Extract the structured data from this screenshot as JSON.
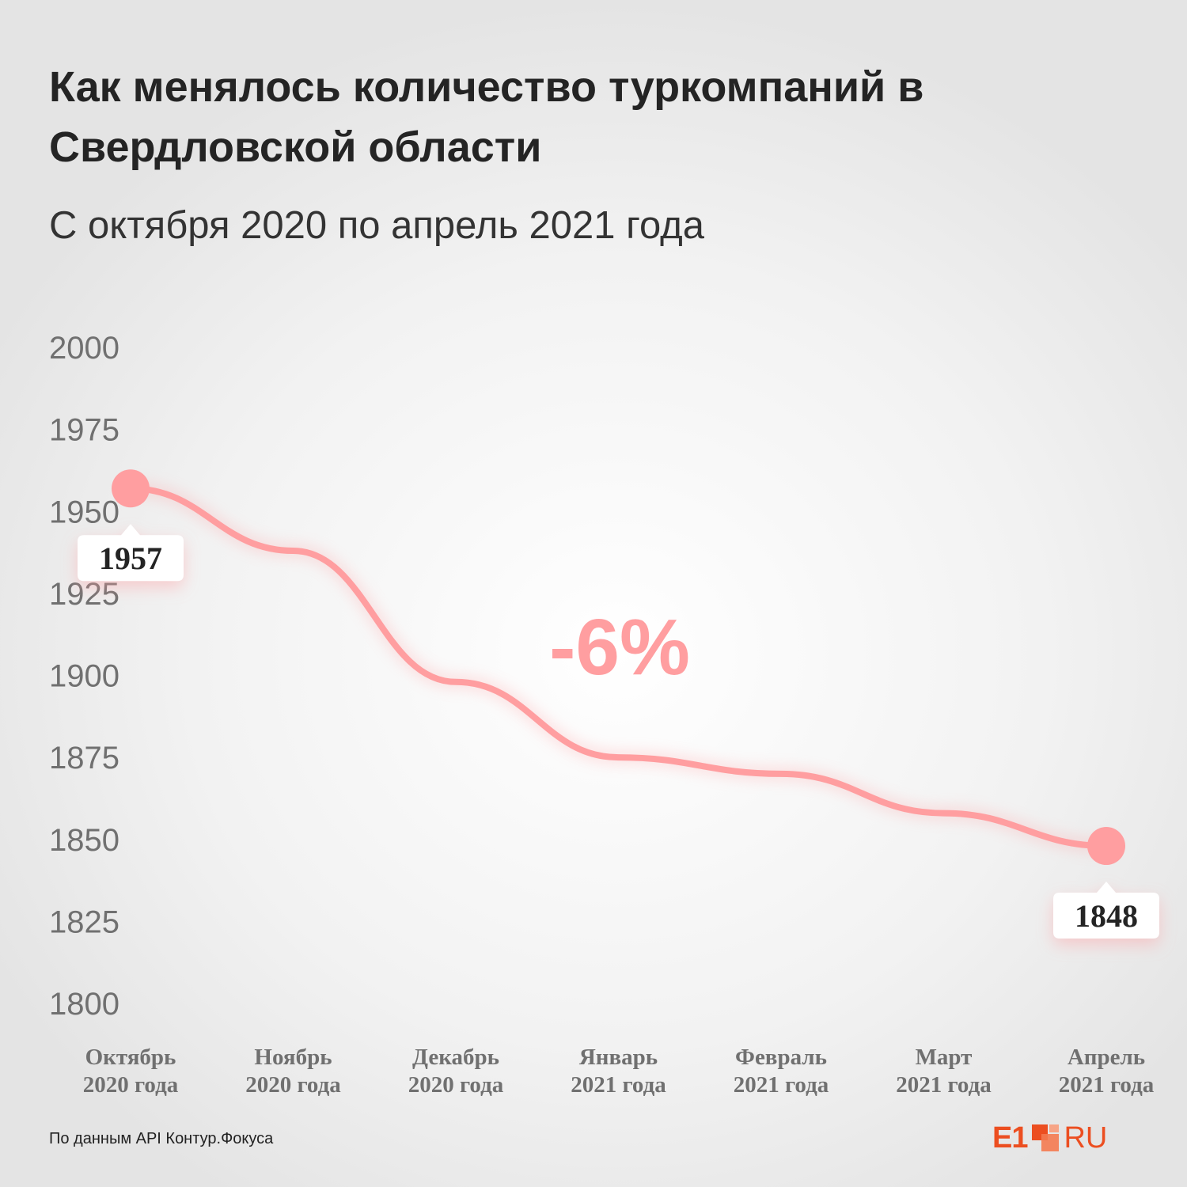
{
  "header": {
    "title": "Как менялось количество туркомпаний в Свердловской области",
    "subtitle": "С октября 2020 по апрель 2021 года"
  },
  "annotation": {
    "change": "-6%"
  },
  "footer": {
    "source": "По данным API Контур.Фокуса",
    "logo_left": "E1",
    "logo_right": "RU"
  },
  "colors": {
    "line": "#ff9ea0",
    "text": "#242424",
    "axis_text": "#707070",
    "callout_bg": "#ffffff"
  },
  "chart_data": {
    "type": "line",
    "categories": [
      [
        "Октябрь",
        "2020 года"
      ],
      [
        "Ноябрь",
        "2020 года"
      ],
      [
        "Декабрь",
        "2020 года"
      ],
      [
        "Январь",
        "2021 года"
      ],
      [
        "Февраль",
        "2021 года"
      ],
      [
        "Март",
        "2021 года"
      ],
      [
        "Апрель",
        "2021 года"
      ]
    ],
    "series": [
      {
        "values": [
          1957,
          1938,
          1898,
          1875,
          1870,
          1858,
          1848
        ]
      }
    ],
    "point_labels": [
      {
        "index": 0,
        "text": "1957"
      },
      {
        "index": 6,
        "text": "1848"
      }
    ],
    "ylim": [
      1800,
      2000
    ],
    "yticks": [
      "2000",
      "1975",
      "1950",
      "1925",
      "1900",
      "1875",
      "1850",
      "1825",
      "1800"
    ],
    "grid": false,
    "legend": "none"
  }
}
